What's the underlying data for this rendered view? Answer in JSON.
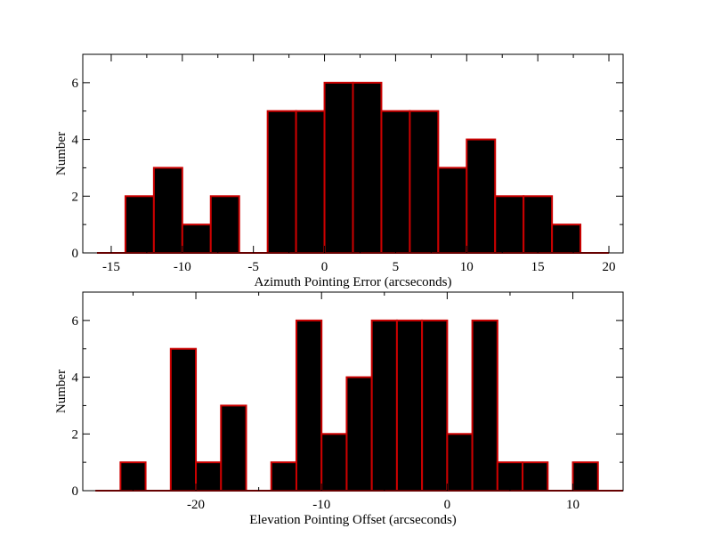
{
  "chart_data": [
    {
      "type": "bar",
      "title": "",
      "xlabel": "Azimuth Pointing Error (arcseconds)",
      "ylabel": "Number",
      "xlim": [
        -17,
        21
      ],
      "ylim": [
        0,
        7
      ],
      "xticks": [
        -15,
        -10,
        -5,
        0,
        5,
        10,
        15,
        20
      ],
      "xtick_labels": [
        "-15",
        "-10",
        "-5",
        "0",
        "5",
        "10",
        "15",
        "20"
      ],
      "yticks": [
        0,
        2,
        4,
        6
      ],
      "ytick_labels": [
        "0",
        "2",
        "4",
        "6"
      ],
      "bin_width": 2,
      "bin_starts": [
        -16,
        -14,
        -12,
        -10,
        -8,
        -6,
        -4,
        -2,
        0,
        2,
        4,
        6,
        8,
        10,
        12,
        14,
        16,
        18
      ],
      "values": [
        0,
        2,
        3,
        1,
        2,
        0,
        5,
        5,
        6,
        6,
        5,
        5,
        3,
        4,
        2,
        2,
        1,
        0
      ],
      "bar_fill": "#000000",
      "bar_edge": "#cc0000",
      "grid": false
    },
    {
      "type": "bar",
      "title": "",
      "xlabel": "Elevation Pointing Offset (arcseconds)",
      "ylabel": "Number",
      "xlim": [
        -29,
        14
      ],
      "ylim": [
        0,
        7
      ],
      "xticks": [
        -20,
        -10,
        0,
        10
      ],
      "xtick_labels": [
        "-20",
        "-10",
        "0",
        "10"
      ],
      "yticks": [
        0,
        2,
        4,
        6
      ],
      "ytick_labels": [
        "0",
        "2",
        "4",
        "6"
      ],
      "bin_width": 2,
      "bin_starts": [
        -28,
        -26,
        -24,
        -22,
        -20,
        -18,
        -16,
        -14,
        -12,
        -10,
        -8,
        -6,
        -4,
        -2,
        0,
        2,
        4,
        6,
        8,
        10,
        12
      ],
      "values": [
        0,
        1,
        0,
        5,
        1,
        3,
        0,
        1,
        6,
        2,
        4,
        6,
        6,
        6,
        2,
        6,
        1,
        1,
        0,
        1,
        0
      ],
      "bar_fill": "#000000",
      "bar_edge": "#cc0000",
      "grid": false
    }
  ]
}
